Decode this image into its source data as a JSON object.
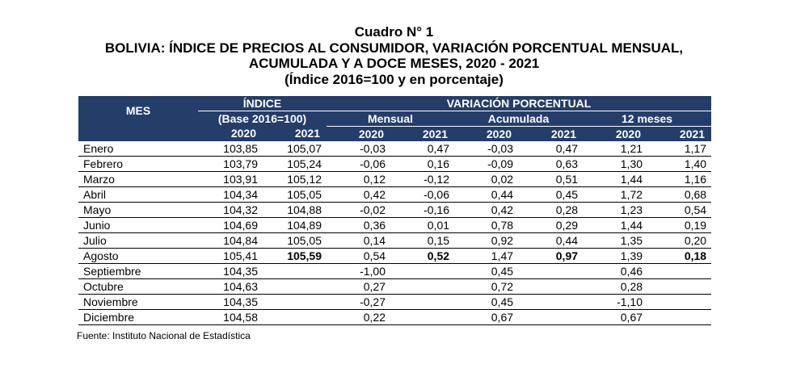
{
  "title": {
    "line1": "Cuadro N° 1",
    "line2": "BOLIVIA: ÍNDICE DE PRECIOS AL CONSUMIDOR, VARIACIÓN PORCENTUAL MENSUAL,",
    "line3": "ACUMULADA Y A DOCE MESES, 2020 - 2021",
    "line4": "(Índice 2016=100 y en porcentaje)"
  },
  "headers": {
    "mes": "MES",
    "indice": "ÍNDICE",
    "base": "(Base 2016=100)",
    "variacion": "VARIACIÓN PORCENTUAL",
    "mensual": "Mensual",
    "acumulada": "Acumulada",
    "doce": "12 meses",
    "years": [
      "2020",
      "2021",
      "2020",
      "2021",
      "2020",
      "2021",
      "2020",
      "2021"
    ]
  },
  "rows": [
    {
      "mes": "Enero",
      "v": [
        "103,85",
        "105,07",
        "-0,03",
        "0,47",
        "-0,03",
        "0,47",
        "1,21",
        "1,17"
      ]
    },
    {
      "mes": "Febrero",
      "v": [
        "103,79",
        "105,24",
        "-0,06",
        "0,16",
        "-0,09",
        "0,63",
        "1,30",
        "1,40"
      ]
    },
    {
      "mes": "Marzo",
      "v": [
        "103,91",
        "105,12",
        "0,12",
        "-0,12",
        "0,02",
        "0,51",
        "1,44",
        "1,16"
      ]
    },
    {
      "mes": "Abril",
      "v": [
        "104,34",
        "105,05",
        "0,42",
        "-0,06",
        "0,44",
        "0,45",
        "1,72",
        "0,68"
      ]
    },
    {
      "mes": "Mayo",
      "v": [
        "104,32",
        "104,88",
        "-0,02",
        "-0,16",
        "0,42",
        "0,28",
        "1,23",
        "0,54"
      ]
    },
    {
      "mes": "Junio",
      "v": [
        "104,69",
        "104,89",
        "0,36",
        "0,01",
        "0,78",
        "0,29",
        "1,44",
        "0,19"
      ]
    },
    {
      "mes": "Julio",
      "v": [
        "104,84",
        "105,05",
        "0,14",
        "0,15",
        "0,92",
        "0,44",
        "1,35",
        "0,20"
      ]
    },
    {
      "mes": "Agosto",
      "v": [
        "105,41",
        "105,59",
        "0,54",
        "0,52",
        "1,47",
        "0,97",
        "1,39",
        "0,18"
      ],
      "bold2021": true
    },
    {
      "mes": "Septiembre",
      "v": [
        "104,35",
        "",
        "-1,00",
        "",
        "0,45",
        "",
        "0,46",
        ""
      ]
    },
    {
      "mes": "Octubre",
      "v": [
        "104,63",
        "",
        "0,27",
        "",
        "0,72",
        "",
        "0,28",
        ""
      ]
    },
    {
      "mes": "Noviembre",
      "v": [
        "104,35",
        "",
        "-0,27",
        "",
        "0,45",
        "",
        "-1,10",
        ""
      ]
    },
    {
      "mes": "Diciembre",
      "v": [
        "104,58",
        "",
        "0,22",
        "",
        "0,67",
        "",
        "0,67",
        ""
      ]
    }
  ],
  "source": "Fuente: Instituto Nacional de Estadística",
  "colors": {
    "header_bg": "#243d69",
    "header_text": "#ffffff"
  }
}
